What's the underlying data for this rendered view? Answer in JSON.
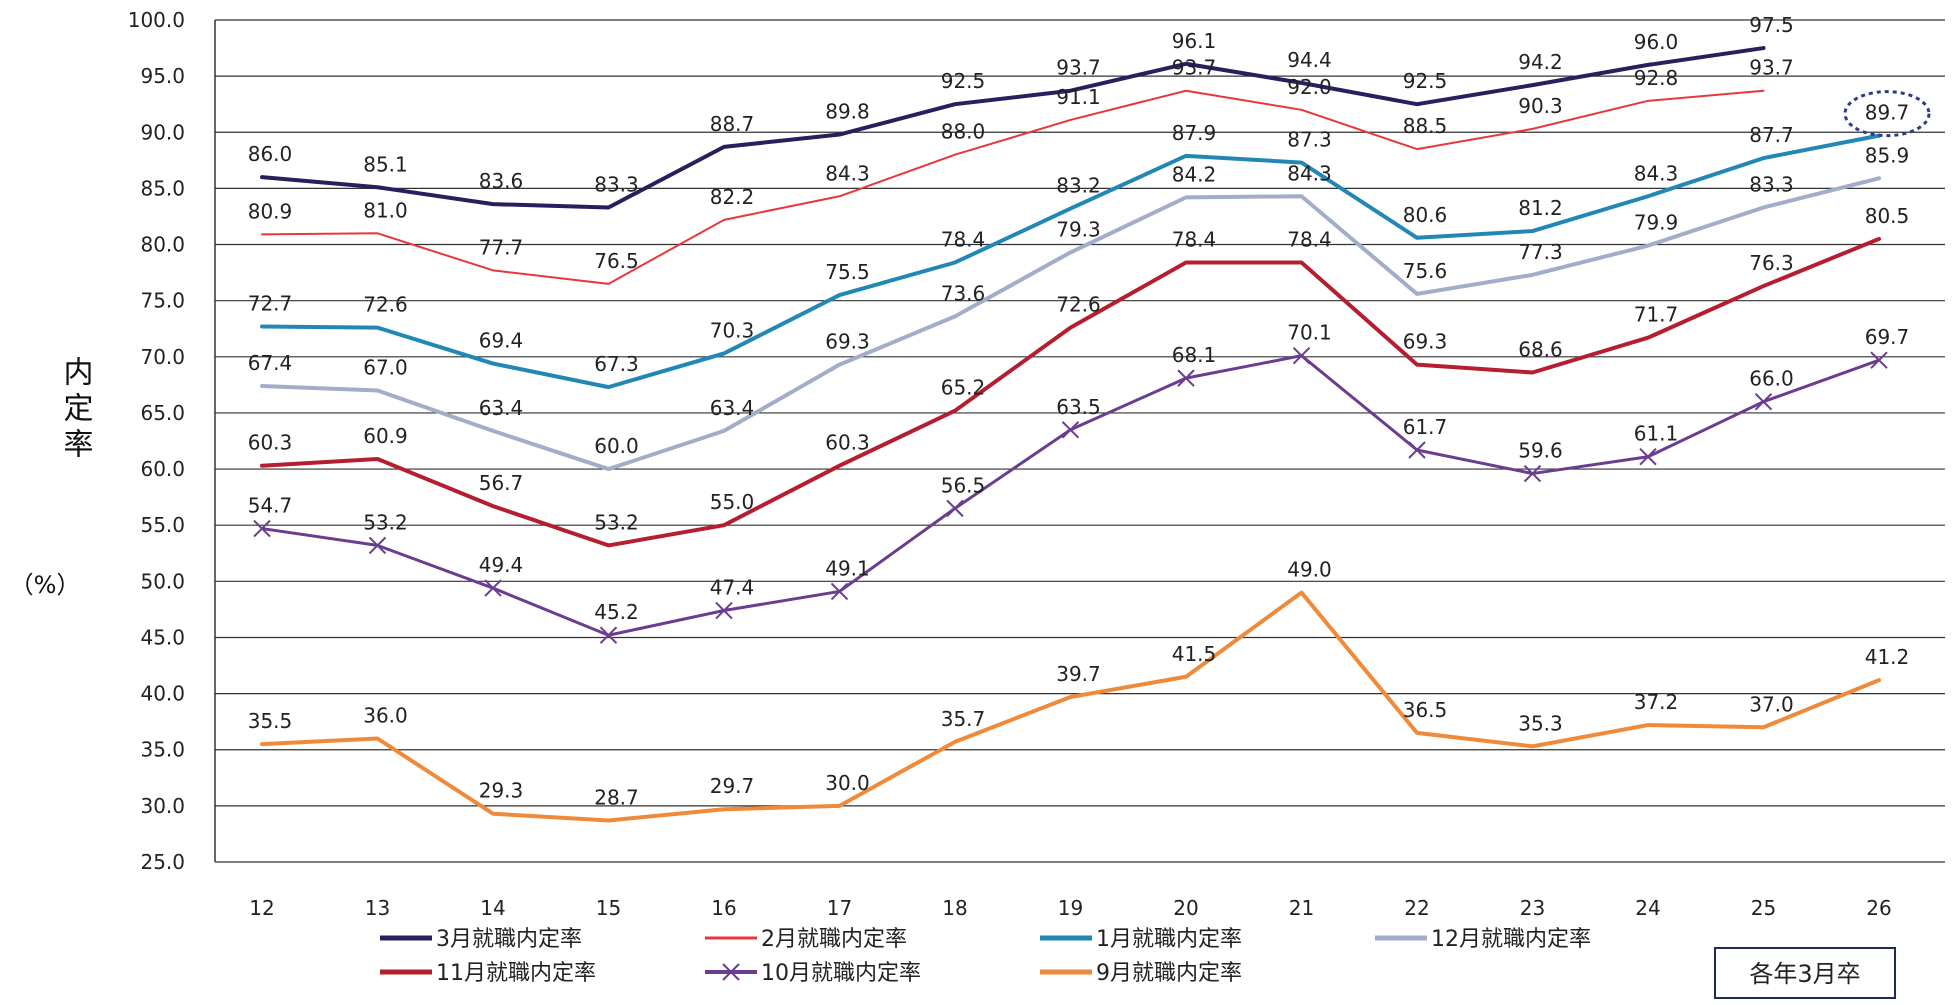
{
  "chart_data": {
    "type": "line",
    "title": "",
    "ylabel": "内定率",
    "yunit": "（%）",
    "xlabel": "",
    "categories": [
      "12",
      "13",
      "14",
      "15",
      "16",
      "17",
      "18",
      "19",
      "20",
      "21",
      "22",
      "23",
      "24",
      "25",
      "26"
    ],
    "ylim": [
      25.0,
      100.0
    ],
    "yticks": [
      "100.0",
      "95.0",
      "90.0",
      "85.0",
      "80.0",
      "75.0",
      "70.0",
      "65.0",
      "60.0",
      "55.0",
      "50.0",
      "45.0",
      "40.0",
      "35.0",
      "30.0",
      "25.0"
    ],
    "grid": true,
    "legend_position": "bottom",
    "note": "各年3月卒",
    "highlight": {
      "series": 2,
      "index": 14
    },
    "series": [
      {
        "name": "3月就職内定率",
        "color": "#2b1d5e",
        "width": 4,
        "values": [
          86.0,
          85.1,
          83.6,
          83.3,
          88.7,
          89.8,
          92.5,
          93.7,
          96.1,
          94.4,
          92.5,
          94.2,
          96.0,
          97.5,
          null
        ],
        "labels": [
          "86.0",
          "85.1",
          "83.6",
          "83.3",
          "88.7",
          "89.8",
          "92.5",
          "93.7",
          "96.1",
          "94.4",
          "92.5",
          "94.2",
          "96.0",
          "97.5",
          ""
        ]
      },
      {
        "name": "2月就職内定率",
        "color": "#e8373c",
        "width": 2,
        "values": [
          80.9,
          81.0,
          77.7,
          76.5,
          82.2,
          84.3,
          88.0,
          91.1,
          93.7,
          92.0,
          88.5,
          90.3,
          92.8,
          93.7,
          null
        ],
        "labels": [
          "80.9",
          "81.0",
          "77.7",
          "76.5",
          "82.2",
          "84.3",
          "88.0",
          "91.1",
          "93.7",
          "92.0",
          "88.5",
          "90.3",
          "92.8",
          "93.7",
          ""
        ]
      },
      {
        "name": "1月就職内定率",
        "color": "#2188b5",
        "width": 4,
        "values": [
          72.7,
          72.6,
          69.4,
          67.3,
          70.3,
          75.5,
          78.4,
          83.2,
          87.9,
          87.3,
          80.6,
          81.2,
          84.3,
          87.7,
          89.7
        ],
        "labels": [
          "72.7",
          "72.6",
          "69.4",
          "67.3",
          "70.3",
          "75.5",
          "78.4",
          "83.2",
          "87.9",
          "87.3",
          "80.6",
          "81.2",
          "84.3",
          "87.7",
          "89.7"
        ]
      },
      {
        "name": "12月就職内定率",
        "color": "#a2adc9",
        "width": 4,
        "values": [
          67.4,
          67.0,
          63.4,
          60.0,
          63.4,
          69.3,
          73.6,
          79.3,
          84.2,
          84.3,
          75.6,
          77.3,
          79.9,
          83.3,
          85.9
        ],
        "labels": [
          "67.4",
          "67.0",
          "63.4",
          "60.0",
          "63.4",
          "69.3",
          "73.6",
          "79.3",
          "84.2",
          "84.3",
          "75.6",
          "77.3",
          "79.9",
          "83.3",
          "85.9"
        ]
      },
      {
        "name": "11月就職内定率",
        "color": "#b51e2e",
        "width": 4,
        "values": [
          60.3,
          60.9,
          56.7,
          53.2,
          55.0,
          60.3,
          65.2,
          72.6,
          78.4,
          78.4,
          69.3,
          68.6,
          71.7,
          76.3,
          80.5
        ],
        "labels": [
          "60.3",
          "60.9",
          "56.7",
          "53.2",
          "55.0",
          "60.3",
          "65.2",
          "72.6",
          "78.4",
          "78.4",
          "69.3",
          "68.6",
          "71.7",
          "76.3",
          "80.5"
        ]
      },
      {
        "name": "10月就職内定率",
        "color": "#6b3d8e",
        "width": 3,
        "marker": "x",
        "values": [
          54.7,
          53.2,
          49.4,
          45.2,
          47.4,
          49.1,
          56.5,
          63.5,
          68.1,
          70.1,
          61.7,
          59.6,
          61.1,
          66.0,
          69.7
        ],
        "labels": [
          "54.7",
          "53.2",
          "49.4",
          "45.2",
          "47.4",
          "49.1",
          "56.5",
          "63.5",
          "68.1",
          "70.1",
          "61.7",
          "59.6",
          "61.1",
          "66.0",
          "69.7"
        ]
      },
      {
        "name": "9月就職内定率",
        "color": "#ee8a3a",
        "width": 4,
        "values": [
          35.5,
          36.0,
          29.3,
          28.7,
          29.7,
          30.0,
          35.7,
          39.7,
          41.5,
          49.0,
          36.5,
          35.3,
          37.2,
          37.0,
          41.2
        ],
        "labels": [
          "35.5",
          "36.0",
          "29.3",
          "28.7",
          "29.7",
          "30.0",
          "35.7",
          "39.7",
          "41.5",
          "49.0",
          "36.5",
          "35.3",
          "37.2",
          "37.0",
          "41.2"
        ]
      }
    ]
  }
}
